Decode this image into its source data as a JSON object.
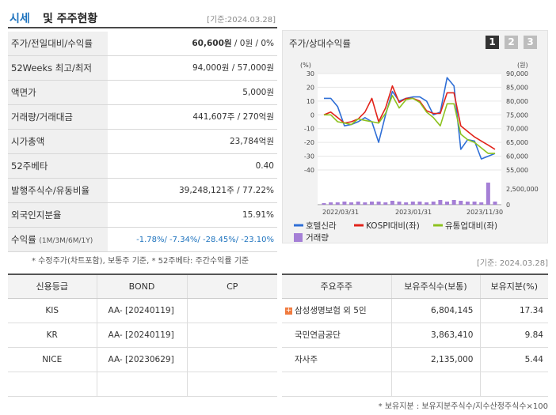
{
  "header": {
    "title_blue": "시세",
    "title_rest": "및 주주현황",
    "date": "[기준:2024.03.28]"
  },
  "info_rows": [
    {
      "label": "주가/전일대비/수익률",
      "value_bold": "60,600원",
      "value_rest": " / 0원 / 0%"
    },
    {
      "label": "52Weeks 최고/최저",
      "value": "94,000원 / 57,000원"
    },
    {
      "label": "액면가",
      "value": "5,000원"
    },
    {
      "label": "거래량/거래대금",
      "value": "441,607주 / 270억원"
    },
    {
      "label": "시가총액",
      "value": "23,784억원"
    },
    {
      "label": "52주베타",
      "value": "0.40"
    },
    {
      "label": "발행주식수/유동비율",
      "value": "39,248,121주 / 77.22%"
    },
    {
      "label": "외국인지분율",
      "value": "15.91%"
    },
    {
      "label": "수익률",
      "label_small": "(1M/3M/6M/1Y)",
      "value": "-1.78%/ -7.34%/ -28.45%/ -23.10%"
    }
  ],
  "note_left": "* 수정주가(차트포함), 보통주 기준, * 52주베타: 주간수익률 기준",
  "chart_panel": {
    "title": "주가/상대수익률",
    "pages": [
      "1",
      "2",
      "3"
    ],
    "active_page": "1",
    "left_unit": "(%)",
    "right_unit": "(원)"
  },
  "chart_data": {
    "type": "line",
    "x_ticks": [
      "2022/03/31",
      "2023/01/31",
      "2023/11/30"
    ],
    "left_axis": {
      "ticks": [
        "30",
        "20",
        "10",
        "0",
        "-10",
        "-20",
        "-30",
        "-40"
      ],
      "ylim": [
        -40,
        30
      ]
    },
    "right_axis": {
      "ticks": [
        "90,000",
        "85,000",
        "80,000",
        "75,000",
        "70,000",
        "65,000",
        "60,000",
        "55,000"
      ],
      "ylim": [
        55000,
        90000
      ]
    },
    "volume_axis": {
      "ticks": [
        "2,500,000",
        "0"
      ]
    },
    "series": [
      {
        "name": "호텔신라",
        "color": "#2f6fd6",
        "values": [
          12,
          12,
          6,
          -8,
          -7,
          -5,
          -2,
          -5,
          -20,
          0,
          17,
          10,
          12,
          13,
          13,
          10,
          0,
          2,
          27,
          21,
          -25,
          -18,
          -19,
          -32,
          -30,
          -28
        ]
      },
      {
        "name": "KOSPI대비(좌)",
        "color": "#e2231a",
        "values": [
          0,
          2,
          -2,
          -6,
          -5,
          -3,
          2,
          12,
          -5,
          5,
          21,
          9,
          12,
          12,
          10,
          3,
          1,
          1,
          16,
          16,
          -8,
          -12,
          -16,
          -19,
          -22,
          -25
        ]
      },
      {
        "name": "유통업대비(좌)",
        "color": "#8dc21f",
        "values": [
          0,
          0,
          -5,
          -6,
          -7,
          -3,
          -4,
          -5,
          -6,
          1,
          14,
          5,
          11,
          12,
          9,
          2,
          -2,
          -8,
          8,
          8,
          -14,
          -18,
          -20,
          -24,
          -28,
          -28
        ]
      }
    ],
    "volume": {
      "name": "거래량",
      "color": "#a57fd6",
      "values": [
        2,
        3,
        3,
        4,
        3,
        4,
        3,
        4,
        4,
        3,
        5,
        4,
        3,
        4,
        4,
        3,
        4,
        6,
        4,
        6,
        5,
        4,
        4,
        3,
        28,
        4
      ]
    }
  },
  "credit_table": {
    "headers": [
      "신용등급",
      "BOND",
      "CP"
    ],
    "rows": [
      {
        "agency": "KIS",
        "bond": "AA-  [20240119]",
        "cp": ""
      },
      {
        "agency": "KR",
        "bond": "AA-  [20240119]",
        "cp": ""
      },
      {
        "agency": "NICE",
        "bond": "AA-  [20230629]",
        "cp": ""
      },
      {
        "agency": "",
        "bond": "",
        "cp": ""
      }
    ]
  },
  "date_right": "[기준: 2024.03.28]",
  "holders_table": {
    "headers": [
      "주요주주",
      "보유주식수(보통)",
      "보유지분(%)"
    ],
    "rows": [
      {
        "name": "삼성생명보험 외 5인",
        "shares": "6,804,145",
        "pct": "17.34",
        "expandable": true
      },
      {
        "name": "국민연금공단",
        "shares": "3,863,410",
        "pct": "9.84",
        "expandable": false
      },
      {
        "name": "자사주",
        "shares": "2,135,000",
        "pct": "5.44",
        "expandable": false
      },
      {
        "name": "",
        "shares": "",
        "pct": "",
        "expandable": false
      }
    ]
  },
  "note_right": "* 보유지분 : 보유지분주식수/지수산정주식수×100"
}
